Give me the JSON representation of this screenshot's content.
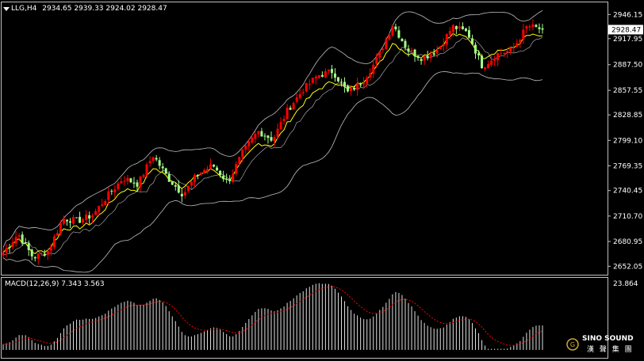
{
  "header": {
    "symbol": "LLG,H4",
    "ohlc": "2934.65 2939.33 2924.02 2928.47"
  },
  "price_axis": {
    "ticks": [
      "2946.15",
      "2917.95",
      "2887.50",
      "2857.55",
      "2828.85",
      "2799.10",
      "2769.35",
      "2740.45",
      "2710.70",
      "2680.95",
      "2652.05"
    ],
    "tick_values": [
      2946.15,
      2917.95,
      2887.5,
      2857.55,
      2828.85,
      2799.1,
      2769.35,
      2740.45,
      2710.7,
      2680.95,
      2652.05
    ],
    "current_price": "2928.47",
    "current_value": 2928.47
  },
  "macd": {
    "label": "MACD(12,26,9) 7.343 3.563",
    "max_label": "23.864",
    "max_value": 23.864
  },
  "logo": {
    "brand": "SINO SOUND",
    "sub": "漢 聲 集 團",
    "mark": "G"
  },
  "colors": {
    "background": "#000000",
    "bull_candle": "#ff0000",
    "bear_candle": "#a6ff8a",
    "moving_average": "#ffff00",
    "bands": "#c0c0c0",
    "signal": "#ff0000",
    "histogram": "#e0e0e0"
  },
  "chart_data": {
    "type": "candlestick",
    "price_range": [
      2644,
      2952
    ],
    "macd_range": [
      -2,
      24.5
    ],
    "key_closes": [
      2668,
      2690,
      2662,
      2670,
      2708,
      2705,
      2712,
      2735,
      2755,
      2748,
      2782,
      2755,
      2736,
      2760,
      2770,
      2750,
      2785,
      2810,
      2800,
      2835,
      2858,
      2875,
      2880,
      2855,
      2868,
      2895,
      2935,
      2905,
      2895,
      2905,
      2932,
      2925,
      2885,
      2900,
      2905,
      2933,
      2928.47
    ]
  }
}
